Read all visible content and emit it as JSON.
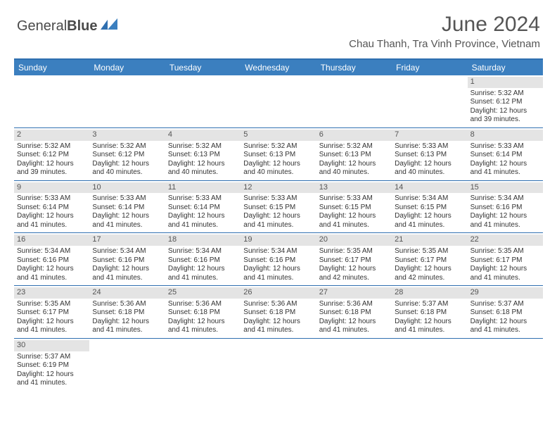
{
  "logo": {
    "text_a": "General",
    "text_b": "Blue"
  },
  "title": "June 2024",
  "location": "Chau Thanh, Tra Vinh Province, Vietnam",
  "colors": {
    "header_bg": "#3b7fbf",
    "border": "#2f6fb0",
    "daynum_bg": "#e4e4e4",
    "text": "#333333",
    "title_text": "#555555"
  },
  "day_headers": [
    "Sunday",
    "Monday",
    "Tuesday",
    "Wednesday",
    "Thursday",
    "Friday",
    "Saturday"
  ],
  "weeks": [
    [
      null,
      null,
      null,
      null,
      null,
      null,
      {
        "n": "1",
        "sr": "Sunrise: 5:32 AM",
        "ss": "Sunset: 6:12 PM",
        "d1": "Daylight: 12 hours",
        "d2": "and 39 minutes."
      }
    ],
    [
      {
        "n": "2",
        "sr": "Sunrise: 5:32 AM",
        "ss": "Sunset: 6:12 PM",
        "d1": "Daylight: 12 hours",
        "d2": "and 39 minutes."
      },
      {
        "n": "3",
        "sr": "Sunrise: 5:32 AM",
        "ss": "Sunset: 6:12 PM",
        "d1": "Daylight: 12 hours",
        "d2": "and 40 minutes."
      },
      {
        "n": "4",
        "sr": "Sunrise: 5:32 AM",
        "ss": "Sunset: 6:13 PM",
        "d1": "Daylight: 12 hours",
        "d2": "and 40 minutes."
      },
      {
        "n": "5",
        "sr": "Sunrise: 5:32 AM",
        "ss": "Sunset: 6:13 PM",
        "d1": "Daylight: 12 hours",
        "d2": "and 40 minutes."
      },
      {
        "n": "6",
        "sr": "Sunrise: 5:32 AM",
        "ss": "Sunset: 6:13 PM",
        "d1": "Daylight: 12 hours",
        "d2": "and 40 minutes."
      },
      {
        "n": "7",
        "sr": "Sunrise: 5:33 AM",
        "ss": "Sunset: 6:13 PM",
        "d1": "Daylight: 12 hours",
        "d2": "and 40 minutes."
      },
      {
        "n": "8",
        "sr": "Sunrise: 5:33 AM",
        "ss": "Sunset: 6:14 PM",
        "d1": "Daylight: 12 hours",
        "d2": "and 41 minutes."
      }
    ],
    [
      {
        "n": "9",
        "sr": "Sunrise: 5:33 AM",
        "ss": "Sunset: 6:14 PM",
        "d1": "Daylight: 12 hours",
        "d2": "and 41 minutes."
      },
      {
        "n": "10",
        "sr": "Sunrise: 5:33 AM",
        "ss": "Sunset: 6:14 PM",
        "d1": "Daylight: 12 hours",
        "d2": "and 41 minutes."
      },
      {
        "n": "11",
        "sr": "Sunrise: 5:33 AM",
        "ss": "Sunset: 6:14 PM",
        "d1": "Daylight: 12 hours",
        "d2": "and 41 minutes."
      },
      {
        "n": "12",
        "sr": "Sunrise: 5:33 AM",
        "ss": "Sunset: 6:15 PM",
        "d1": "Daylight: 12 hours",
        "d2": "and 41 minutes."
      },
      {
        "n": "13",
        "sr": "Sunrise: 5:33 AM",
        "ss": "Sunset: 6:15 PM",
        "d1": "Daylight: 12 hours",
        "d2": "and 41 minutes."
      },
      {
        "n": "14",
        "sr": "Sunrise: 5:34 AM",
        "ss": "Sunset: 6:15 PM",
        "d1": "Daylight: 12 hours",
        "d2": "and 41 minutes."
      },
      {
        "n": "15",
        "sr": "Sunrise: 5:34 AM",
        "ss": "Sunset: 6:16 PM",
        "d1": "Daylight: 12 hours",
        "d2": "and 41 minutes."
      }
    ],
    [
      {
        "n": "16",
        "sr": "Sunrise: 5:34 AM",
        "ss": "Sunset: 6:16 PM",
        "d1": "Daylight: 12 hours",
        "d2": "and 41 minutes."
      },
      {
        "n": "17",
        "sr": "Sunrise: 5:34 AM",
        "ss": "Sunset: 6:16 PM",
        "d1": "Daylight: 12 hours",
        "d2": "and 41 minutes."
      },
      {
        "n": "18",
        "sr": "Sunrise: 5:34 AM",
        "ss": "Sunset: 6:16 PM",
        "d1": "Daylight: 12 hours",
        "d2": "and 41 minutes."
      },
      {
        "n": "19",
        "sr": "Sunrise: 5:34 AM",
        "ss": "Sunset: 6:16 PM",
        "d1": "Daylight: 12 hours",
        "d2": "and 41 minutes."
      },
      {
        "n": "20",
        "sr": "Sunrise: 5:35 AM",
        "ss": "Sunset: 6:17 PM",
        "d1": "Daylight: 12 hours",
        "d2": "and 42 minutes."
      },
      {
        "n": "21",
        "sr": "Sunrise: 5:35 AM",
        "ss": "Sunset: 6:17 PM",
        "d1": "Daylight: 12 hours",
        "d2": "and 42 minutes."
      },
      {
        "n": "22",
        "sr": "Sunrise: 5:35 AM",
        "ss": "Sunset: 6:17 PM",
        "d1": "Daylight: 12 hours",
        "d2": "and 41 minutes."
      }
    ],
    [
      {
        "n": "23",
        "sr": "Sunrise: 5:35 AM",
        "ss": "Sunset: 6:17 PM",
        "d1": "Daylight: 12 hours",
        "d2": "and 41 minutes."
      },
      {
        "n": "24",
        "sr": "Sunrise: 5:36 AM",
        "ss": "Sunset: 6:18 PM",
        "d1": "Daylight: 12 hours",
        "d2": "and 41 minutes."
      },
      {
        "n": "25",
        "sr": "Sunrise: 5:36 AM",
        "ss": "Sunset: 6:18 PM",
        "d1": "Daylight: 12 hours",
        "d2": "and 41 minutes."
      },
      {
        "n": "26",
        "sr": "Sunrise: 5:36 AM",
        "ss": "Sunset: 6:18 PM",
        "d1": "Daylight: 12 hours",
        "d2": "and 41 minutes."
      },
      {
        "n": "27",
        "sr": "Sunrise: 5:36 AM",
        "ss": "Sunset: 6:18 PM",
        "d1": "Daylight: 12 hours",
        "d2": "and 41 minutes."
      },
      {
        "n": "28",
        "sr": "Sunrise: 5:37 AM",
        "ss": "Sunset: 6:18 PM",
        "d1": "Daylight: 12 hours",
        "d2": "and 41 minutes."
      },
      {
        "n": "29",
        "sr": "Sunrise: 5:37 AM",
        "ss": "Sunset: 6:18 PM",
        "d1": "Daylight: 12 hours",
        "d2": "and 41 minutes."
      }
    ],
    [
      {
        "n": "30",
        "sr": "Sunrise: 5:37 AM",
        "ss": "Sunset: 6:19 PM",
        "d1": "Daylight: 12 hours",
        "d2": "and 41 minutes."
      },
      null,
      null,
      null,
      null,
      null,
      null
    ]
  ]
}
